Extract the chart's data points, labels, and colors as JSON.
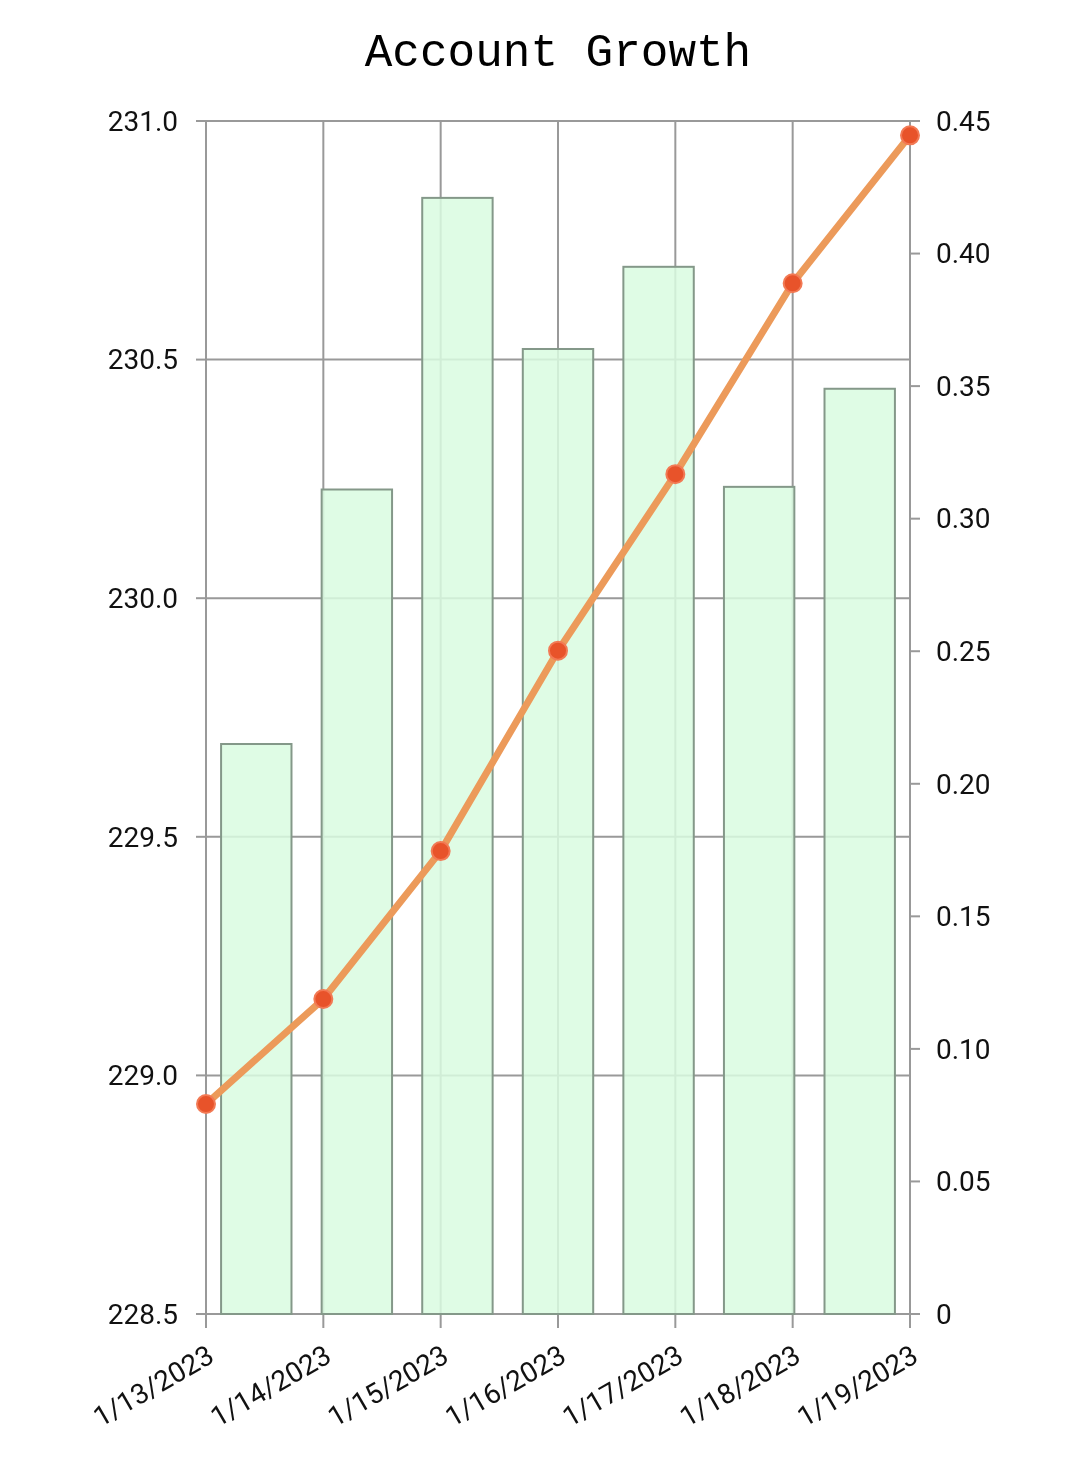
{
  "chart_data": {
    "type": "bar",
    "title": "Account Growth",
    "categories": [
      "1/13/2023",
      "1/14/2023",
      "1/15/2023",
      "1/16/2023",
      "1/17/2023",
      "1/18/2023",
      "1/19/2023"
    ],
    "series": [
      {
        "color": "#d9fbe1",
        "axis": "y2",
        "values": [
          0.215,
          0.311,
          0.421,
          0.364,
          0.395,
          0.312,
          0.349
        ]
      },
      {
        "type": "line",
        "color": "#ec9a5a",
        "values": [
          228.94,
          229.16,
          229.47,
          229.89,
          230.26,
          230.66,
          230.97
        ]
      }
    ],
    "ylim": [
      228.5,
      231.0
    ],
    "yticks": [
      {
        "value": 228.5,
        "label": "228.5"
      },
      {
        "value": 229.0,
        "label": "229.0"
      },
      {
        "value": 229.5,
        "label": "229.5"
      },
      {
        "value": 230.0,
        "label": "230.0"
      },
      {
        "value": 230.5,
        "label": "230.5"
      },
      {
        "value": 231.0,
        "label": "231.0"
      }
    ],
    "y2lim": [
      0,
      0.45
    ],
    "y2ticks": [
      0,
      {
        "value": 0.05,
        "label": "0.05"
      },
      {
        "value": 0.1,
        "label": "0.10"
      },
      {
        "value": 0.15,
        "label": "0.15"
      },
      {
        "value": 0.2,
        "label": "0.20"
      },
      {
        "value": 0.25,
        "label": "0.25"
      },
      {
        "value": 0.3,
        "label": "0.30"
      },
      {
        "value": 0.35,
        "label": "0.35"
      },
      {
        "value": 0.4,
        "label": "0.40"
      },
      {
        "value": 0.45,
        "label": "0.45"
      }
    ],
    "grid": true,
    "marker": "circle",
    "line_style": "solid"
  }
}
